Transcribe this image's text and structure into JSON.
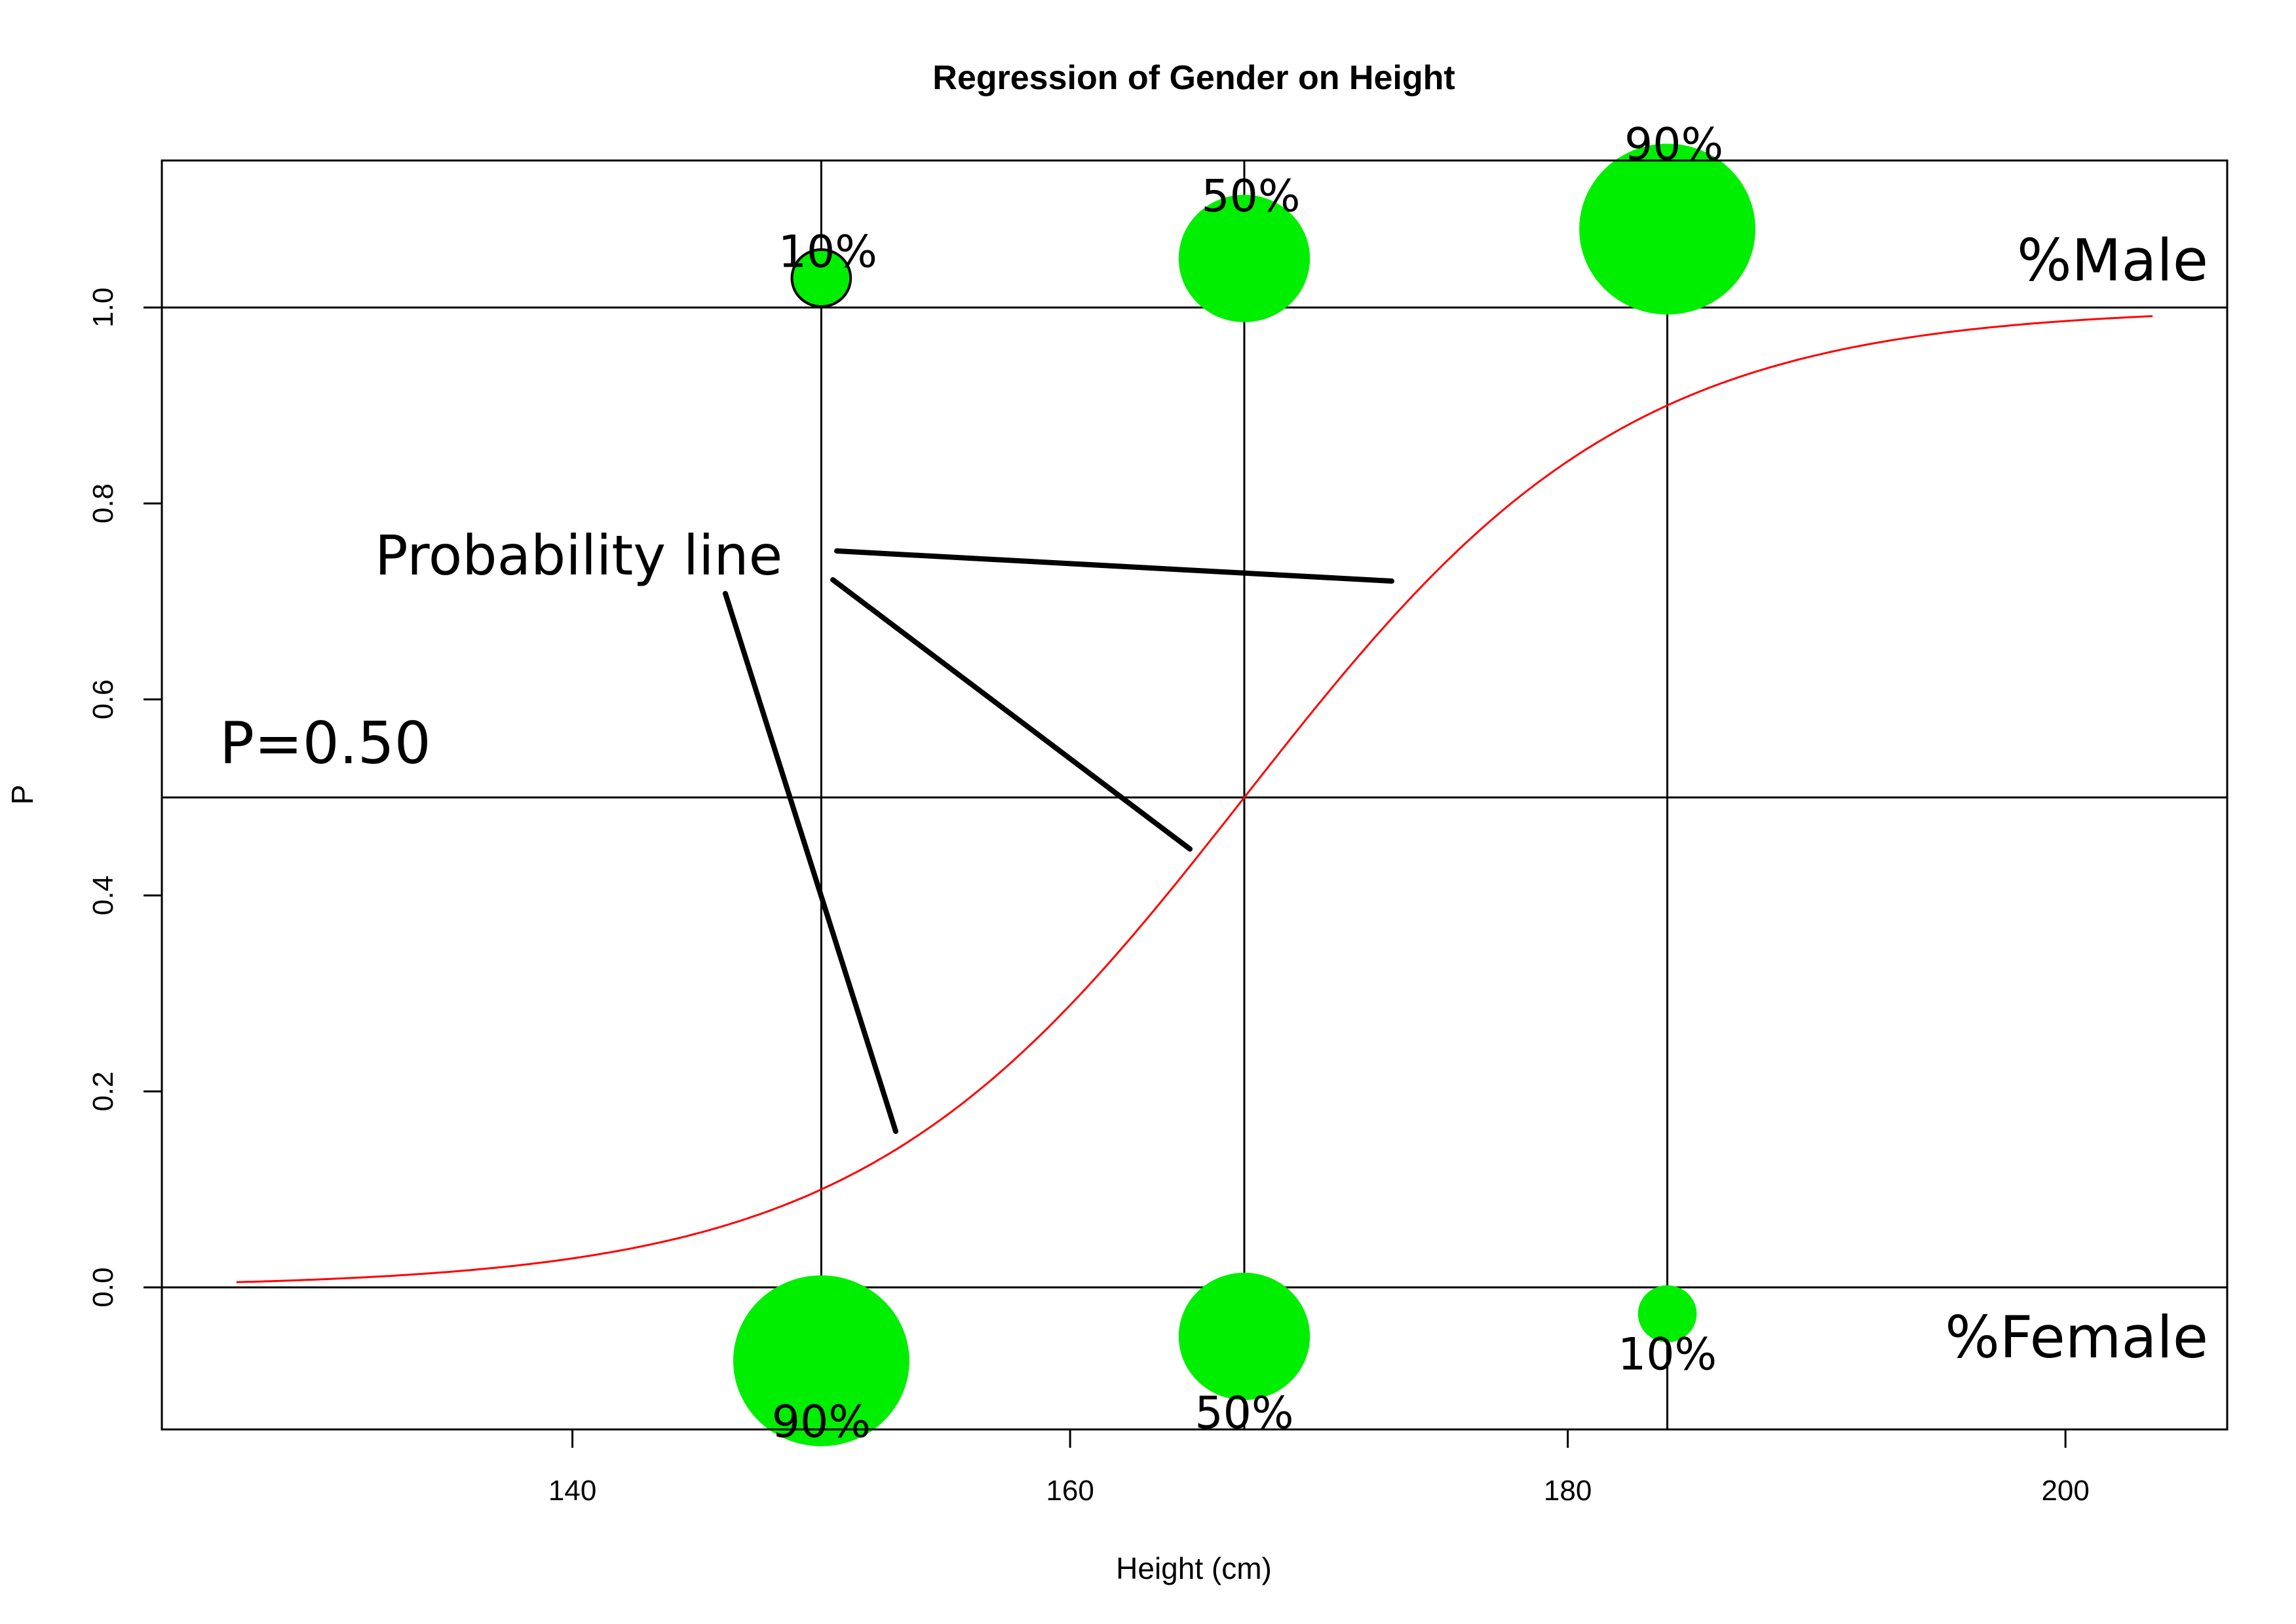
{
  "chart_data": {
    "type": "line",
    "title": "Regression of Gender on Height",
    "xlabel": "Height (cm)",
    "ylabel": "P",
    "xlim": [
      123.5,
      206.5
    ],
    "ylim": [
      -0.145,
      1.15
    ],
    "x_ticks": [
      140,
      160,
      180,
      200
    ],
    "x_tick_labels": [
      "140",
      "160",
      "180",
      "200"
    ],
    "y_ticks": [
      0.0,
      0.2,
      0.4,
      0.6,
      0.8,
      1.0
    ],
    "y_tick_labels": [
      "0.0",
      "0.2",
      "0.4",
      "0.6",
      "0.8",
      "1.0"
    ],
    "grid": false,
    "reference_lines": {
      "horizontal": [
        0.0,
        0.5,
        1.0
      ],
      "vertical": [
        150,
        167,
        184
      ]
    },
    "probability_curve": {
      "color": "#ff0000",
      "x_range": [
        126.5,
        203.5
      ],
      "midpoint": 167,
      "slope": 0.1293
    },
    "male_bubbles": [
      {
        "x": 150,
        "y": 1.03,
        "label": "10%",
        "value": 0.1
      },
      {
        "x": 167,
        "y": 1.05,
        "label": "50%",
        "value": 0.5
      },
      {
        "x": 184,
        "y": 1.08,
        "label": "90%",
        "value": 0.9
      }
    ],
    "female_bubbles": [
      {
        "x": 150,
        "y": -0.075,
        "label": "90%",
        "value": 0.9
      },
      {
        "x": 167,
        "y": -0.05,
        "label": "50%",
        "value": 0.5
      },
      {
        "x": 184,
        "y": -0.027,
        "label": "10%",
        "value": 0.1
      }
    ],
    "bubble_color": "#00ee00",
    "annotations": {
      "male_label": "%Male",
      "female_label": "%Female",
      "p_label": "P=0.50",
      "probability_line_label": "Probability line"
    }
  }
}
